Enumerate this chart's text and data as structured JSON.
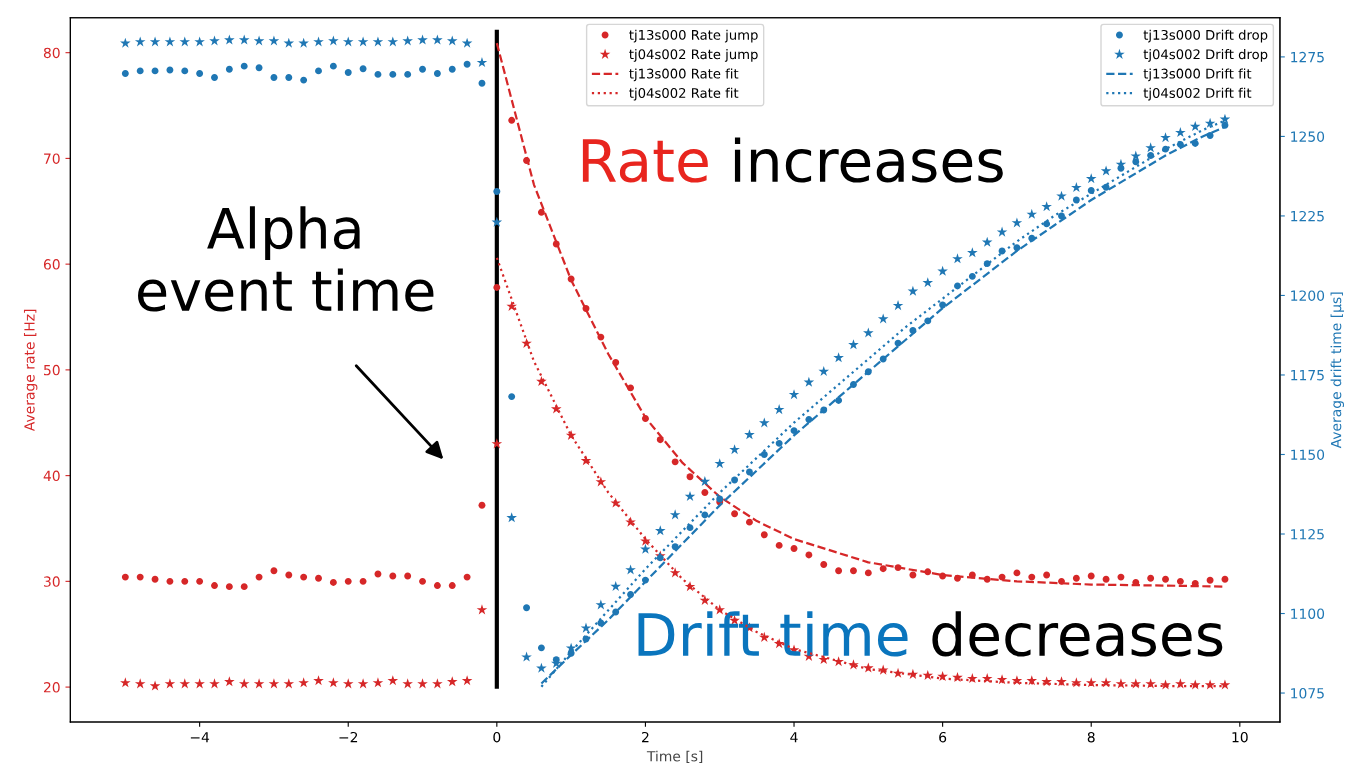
{
  "chart_data": {
    "type": "scatter",
    "xlabel": "Time [s]",
    "ylabel": "Average rate [Hz]",
    "y2label": "Average drift time [μs]",
    "xlim": [
      -5.74,
      10.54
    ],
    "xticks": [
      {
        "value": -4,
        "label": "−4"
      },
      {
        "value": -2,
        "label": "−2"
      },
      0,
      2,
      4,
      6,
      8,
      10
    ],
    "ylim": [
      16.7,
      83.3
    ],
    "yticks": [
      20,
      30,
      40,
      50,
      60,
      70,
      80
    ],
    "y2lim": [
      1065.9,
      1287.3
    ],
    "y2ticks": [
      1075,
      1100,
      1125,
      1150,
      1175,
      1200,
      1225,
      1250,
      1275
    ],
    "grid": false,
    "legend": "top right",
    "x": [
      -5.0,
      -4.8,
      -4.6,
      -4.4,
      -4.2,
      -4.0,
      -3.8,
      -3.6,
      -3.4,
      -3.2,
      -3.0,
      -2.8,
      -2.6,
      -2.4,
      -2.2,
      -2.0,
      -1.8,
      -1.6,
      -1.4,
      -1.2,
      -1.0,
      -0.8,
      -0.6,
      -0.4,
      -0.2,
      0.0,
      0.2,
      0.4,
      0.6,
      0.8,
      1.0,
      1.2,
      1.4,
      1.6,
      1.8,
      2.0,
      2.2,
      2.4,
      2.6,
      2.8,
      3.0,
      3.2,
      3.4,
      3.6,
      3.8,
      4.0,
      4.2,
      4.4,
      4.6,
      4.8,
      5.0,
      5.2,
      5.4,
      5.6,
      5.8,
      6.0,
      6.2,
      6.4,
      6.6,
      6.8,
      7.0,
      7.2,
      7.4,
      7.6,
      7.8,
      8.0,
      8.2,
      8.4,
      8.6,
      8.8,
      9.0,
      9.2,
      9.4,
      9.6,
      9.8
    ],
    "series": [
      {
        "name": "tj13s000 Rate jump",
        "marker": "circle",
        "color": "#d62728",
        "values": [
          30.4,
          30.4,
          30.2,
          30.0,
          30.0,
          30.0,
          29.6,
          29.5,
          29.5,
          30.4,
          31.0,
          30.6,
          30.4,
          30.3,
          29.9,
          30.0,
          30.0,
          30.7,
          30.5,
          30.5,
          30.0,
          29.6,
          29.6,
          30.4,
          37.2,
          57.8,
          73.6,
          69.8,
          64.9,
          61.9,
          58.6,
          55.8,
          53.1,
          50.7,
          48.3,
          45.4,
          43.4,
          41.3,
          39.9,
          38.4,
          37.5,
          36.4,
          35.6,
          34.4,
          33.4,
          33.1,
          32.5,
          31.6,
          31.0,
          31.0,
          30.8,
          31.2,
          31.3,
          30.6,
          30.9,
          30.5,
          30.3,
          30.6,
          30.2,
          30.4,
          30.8,
          30.4,
          30.6,
          30.0,
          30.3,
          30.5,
          30.2,
          30.4,
          29.9,
          30.3,
          30.2,
          30.0,
          29.8,
          30.1,
          30.2
        ]
      },
      {
        "name": "tj04s002 Rate jump",
        "marker": "star",
        "color": "#d62728",
        "values": [
          20.4,
          20.3,
          20.1,
          20.3,
          20.3,
          20.3,
          20.3,
          20.5,
          20.3,
          20.3,
          20.3,
          20.3,
          20.4,
          20.6,
          20.4,
          20.3,
          20.3,
          20.4,
          20.6,
          20.3,
          20.3,
          20.3,
          20.5,
          20.6,
          27.3,
          43.0,
          56.0,
          52.5,
          48.9,
          46.3,
          43.8,
          41.4,
          39.4,
          37.4,
          35.6,
          33.8,
          32.4,
          30.8,
          29.5,
          28.2,
          27.3,
          26.3,
          25.6,
          24.7,
          24.1,
          23.5,
          22.9,
          22.6,
          22.4,
          22.1,
          21.8,
          21.6,
          21.3,
          21.2,
          21.1,
          21.0,
          20.9,
          20.8,
          20.8,
          20.7,
          20.6,
          20.6,
          20.5,
          20.5,
          20.4,
          20.4,
          20.4,
          20.3,
          20.3,
          20.3,
          20.2,
          20.3,
          20.2,
          20.2,
          20.2
        ]
      },
      {
        "name": "tj13s000 Rate fit",
        "type": "line",
        "marker": "none",
        "line_style": "dashed",
        "color": "#d62728",
        "x": [
          0,
          0.5,
          1,
          1.5,
          2,
          2.5,
          3,
          3.5,
          4,
          5,
          6,
          7,
          8,
          9,
          9.8
        ],
        "values": [
          80.9,
          67.5,
          58.5,
          51.5,
          45.5,
          41.2,
          38.0,
          35.7,
          34.0,
          31.8,
          30.6,
          30.0,
          29.7,
          29.6,
          29.5
        ]
      },
      {
        "name": "tj04s002 Rate fit",
        "type": "line",
        "marker": "none",
        "line_style": "dotted",
        "color": "#d62728",
        "x": [
          0,
          0.5,
          1,
          1.5,
          2,
          2.5,
          3,
          3.5,
          4,
          5,
          6,
          7,
          8,
          9,
          9.8
        ],
        "values": [
          60.6,
          50.8,
          43.8,
          38.4,
          34.0,
          30.2,
          27.3,
          25.2,
          23.6,
          21.7,
          20.8,
          20.4,
          20.2,
          20.1,
          20.1
        ]
      },
      {
        "name": "tj13s000 Drift drop",
        "marker": "circle",
        "axis": "y2",
        "color": "#1f77b4",
        "values": [
          1269.8,
          1270.6,
          1270.6,
          1270.9,
          1270.6,
          1269.8,
          1268.5,
          1271.1,
          1272.1,
          1271.6,
          1268.5,
          1268.5,
          1267.7,
          1270.6,
          1272.1,
          1270.1,
          1271.3,
          1269.5,
          1269.5,
          1269.5,
          1271.1,
          1269.8,
          1271.1,
          1272.7,
          1266.7,
          1232.7,
          1168.2,
          1101.8,
          1089.2,
          1085.5,
          1087.5,
          1092,
          1097,
          1100.5,
          1106,
          1110.5,
          1117.5,
          1121,
          1127,
          1131,
          1136,
          1142,
          1144.5,
          1150,
          1153.5,
          1157.5,
          1161,
          1164,
          1167,
          1172,
          1176,
          1180,
          1185,
          1189,
          1192,
          1197,
          1203,
          1206,
          1210,
          1214,
          1215,
          1218,
          1222.5,
          1225,
          1230,
          1233,
          1234,
          1240,
          1242,
          1244,
          1246,
          1247.5,
          1247.8,
          1250.3,
          1253.5
        ]
      },
      {
        "name": "tj04s002 Drift drop",
        "marker": "star",
        "axis": "y2",
        "color": "#1f77b4",
        "values": [
          1279.3,
          1279.7,
          1279.7,
          1279.7,
          1279.7,
          1279.7,
          1280.0,
          1280.3,
          1280.3,
          1280.0,
          1280.0,
          1279.3,
          1279.3,
          1279.7,
          1280.0,
          1279.7,
          1279.7,
          1279.7,
          1279.7,
          1280.0,
          1280.3,
          1280.3,
          1280.0,
          1279.3,
          1273.2,
          1223.0,
          1130.1,
          1086.3,
          1082.8,
          1084.3,
          1089.1,
          1095.4,
          1102.7,
          1108.5,
          1113.7,
          1120.2,
          1126.0,
          1131.0,
          1136.8,
          1141.5,
          1147.1,
          1151.5,
          1156.2,
          1159.9,
          1164.1,
          1168.8,
          1172.7,
          1176.1,
          1180.4,
          1184.5,
          1188.2,
          1192.6,
          1196.8,
          1201.3,
          1204.0,
          1207.6,
          1211.5,
          1213.4,
          1216.7,
          1219.9,
          1222.8,
          1225.5,
          1227.9,
          1231.2,
          1233.9,
          1236.7,
          1239.1,
          1241.2,
          1243.8,
          1246.4,
          1249.6,
          1251.2,
          1253.1,
          1254.1,
          1255.4
        ]
      },
      {
        "name": "tj13s000 Drift fit",
        "type": "line",
        "marker": "none",
        "line_style": "dashed",
        "axis": "y2",
        "color": "#1f77b4",
        "x": [
          0.6,
          1,
          1.5,
          2,
          2.5,
          3,
          3.5,
          4,
          4.5,
          5,
          5.5,
          6,
          6.5,
          7,
          7.5,
          8,
          8.5,
          9,
          9.5,
          9.8
        ],
        "values": [
          1078,
          1087,
          1098,
          1110,
          1122,
          1134,
          1145,
          1156,
          1166,
          1176,
          1186,
          1196,
          1205,
          1214,
          1222,
          1230,
          1237,
          1244,
          1250,
          1253
        ]
      },
      {
        "name": "tj04s002 Drift fit",
        "type": "line",
        "marker": "none",
        "line_style": "dotted",
        "axis": "y2",
        "color": "#1f77b4",
        "x": [
          0.6,
          1,
          1.5,
          2,
          2.5,
          3,
          3.5,
          4,
          4.5,
          5,
          5.5,
          6,
          6.5,
          7,
          7.5,
          8,
          8.5,
          9,
          9.5,
          9.8
        ],
        "values": [
          1077,
          1088,
          1101,
          1114,
          1126,
          1138,
          1149,
          1160,
          1170,
          1180,
          1190,
          1199,
          1208,
          1217,
          1225,
          1232,
          1239,
          1246,
          1252,
          1255
        ]
      }
    ],
    "ref_lines": [
      {
        "axis": "x",
        "value": 0,
        "color": "#000000"
      }
    ],
    "annotations": [
      "Alpha\nevent time",
      "Rate increases",
      "Drift time decreases"
    ]
  }
}
